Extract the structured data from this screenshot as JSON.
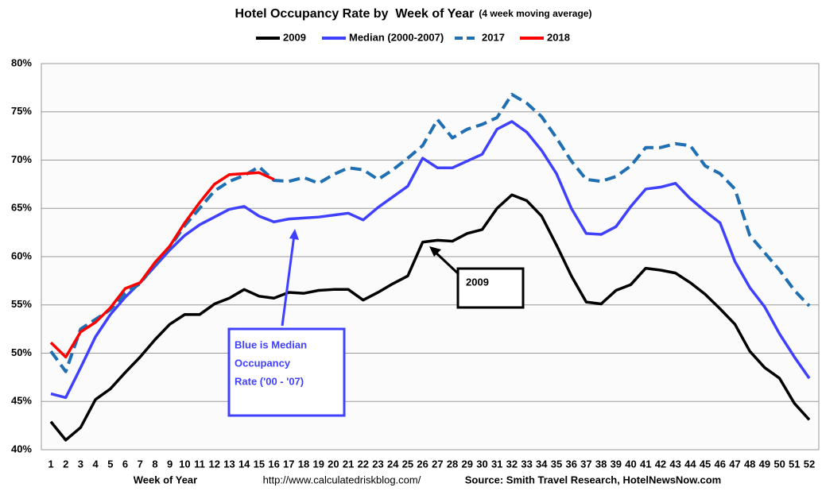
{
  "chart_data": {
    "type": "line",
    "title": "Hotel Occupancy Rate by  Week of Year",
    "subtitle": "(4 week moving average)",
    "x_label": "Week of Year",
    "url": "http://www.calculatedriskblog.com/",
    "source": "Source: Smith Travel Research, HotelNewsNow.com",
    "categories": [
      "1",
      "2",
      "3",
      "4",
      "5",
      "6",
      "7",
      "8",
      "9",
      "10",
      "11",
      "12",
      "13",
      "14",
      "15",
      "16",
      "17",
      "18",
      "19",
      "20",
      "21",
      "22",
      "23",
      "24",
      "25",
      "26",
      "27",
      "28",
      "29",
      "30",
      "31",
      "32",
      "33",
      "34",
      "35",
      "36",
      "37",
      "38",
      "39",
      "40",
      "41",
      "42",
      "43",
      "44",
      "45",
      "46",
      "47",
      "48",
      "49",
      "50",
      "51",
      "52"
    ],
    "series": [
      {
        "name": "2009",
        "color": "#000000",
        "style": "solid",
        "values": [
          42.9,
          41.0,
          42.3,
          45.2,
          46.3,
          48.0,
          49.6,
          51.4,
          53.0,
          54.0,
          54.0,
          55.1,
          55.7,
          56.6,
          55.9,
          55.7,
          56.3,
          56.2,
          56.5,
          56.6,
          56.6,
          55.5,
          56.3,
          57.2,
          58.0,
          61.5,
          61.7,
          61.6,
          62.4,
          62.8,
          65.0,
          66.4,
          65.8,
          64.2,
          61.2,
          58.0,
          55.3,
          55.1,
          56.5,
          57.1,
          58.8,
          58.6,
          58.3,
          57.3,
          56.1,
          54.6,
          53.0,
          50.2,
          48.5,
          47.4,
          44.8,
          43.1
        ]
      },
      {
        "name": "Median (2000-2007)",
        "color": "#4040ff",
        "style": "solid",
        "values": [
          45.8,
          45.4,
          48.5,
          51.7,
          54.0,
          55.8,
          57.3,
          59.0,
          60.7,
          62.2,
          63.3,
          64.1,
          64.9,
          65.2,
          64.2,
          63.6,
          63.9,
          64.0,
          64.1,
          64.3,
          64.5,
          63.8,
          65.1,
          66.2,
          67.3,
          70.2,
          69.2,
          69.2,
          69.9,
          70.6,
          73.2,
          74.0,
          72.9,
          71.0,
          68.6,
          65.0,
          62.4,
          62.3,
          63.1,
          65.2,
          67.0,
          67.2,
          67.6,
          66.0,
          64.7,
          63.5,
          59.5,
          56.8,
          54.8,
          52.0,
          49.6,
          47.4
        ]
      },
      {
        "name": "2017",
        "color": "#1f6fb2",
        "style": "dashed",
        "values": [
          50.2,
          48.1,
          52.5,
          53.5,
          54.5,
          56.2,
          57.2,
          59.2,
          61.0,
          63.2,
          65.0,
          66.8,
          67.8,
          68.4,
          69.3,
          67.9,
          67.8,
          68.2,
          67.6,
          68.5,
          69.2,
          69.0,
          68.0,
          69.0,
          70.2,
          71.5,
          74.2,
          72.3,
          73.2,
          73.7,
          74.4,
          76.8,
          75.9,
          74.5,
          72.3,
          69.9,
          68.0,
          67.8,
          68.3,
          69.4,
          71.3,
          71.3,
          71.7,
          71.5,
          69.4,
          68.6,
          67.0,
          62.2,
          60.4,
          58.6,
          56.5,
          54.9
        ]
      },
      {
        "name": "2018",
        "color": "#ff0000",
        "style": "solid",
        "values": [
          51.1,
          49.6,
          52.2,
          53.2,
          54.7,
          56.7,
          57.3,
          59.4,
          61.1,
          63.5,
          65.6,
          67.5,
          68.5,
          68.6,
          68.7,
          68.0,
          null,
          null,
          null,
          null,
          null,
          null,
          null,
          null,
          null,
          null,
          null,
          null,
          null,
          null,
          null,
          null,
          null,
          null,
          null,
          null,
          null,
          null,
          null,
          null,
          null,
          null,
          null,
          null,
          null,
          null,
          null,
          null,
          null,
          null,
          null,
          null
        ]
      }
    ],
    "ylim": [
      40,
      80
    ],
    "yticks": [
      {
        "value": 40,
        "label": "40%"
      },
      {
        "value": 45,
        "label": "45%"
      },
      {
        "value": 50,
        "label": "50%"
      },
      {
        "value": 55,
        "label": "55%"
      },
      {
        "value": 60,
        "label": "60%"
      },
      {
        "value": 65,
        "label": "65%"
      },
      {
        "value": 70,
        "label": "70%"
      },
      {
        "value": 75,
        "label": "75%"
      },
      {
        "value": 80,
        "label": "80%"
      }
    ],
    "grid": true,
    "legend": "top",
    "annotations": [
      {
        "text": [
          "2009"
        ],
        "color": "#000000"
      },
      {
        "text": [
          "Blue is Median",
          "Occupancy",
          "Rate ('00 - '07)"
        ],
        "color": "#4040ff"
      }
    ]
  }
}
